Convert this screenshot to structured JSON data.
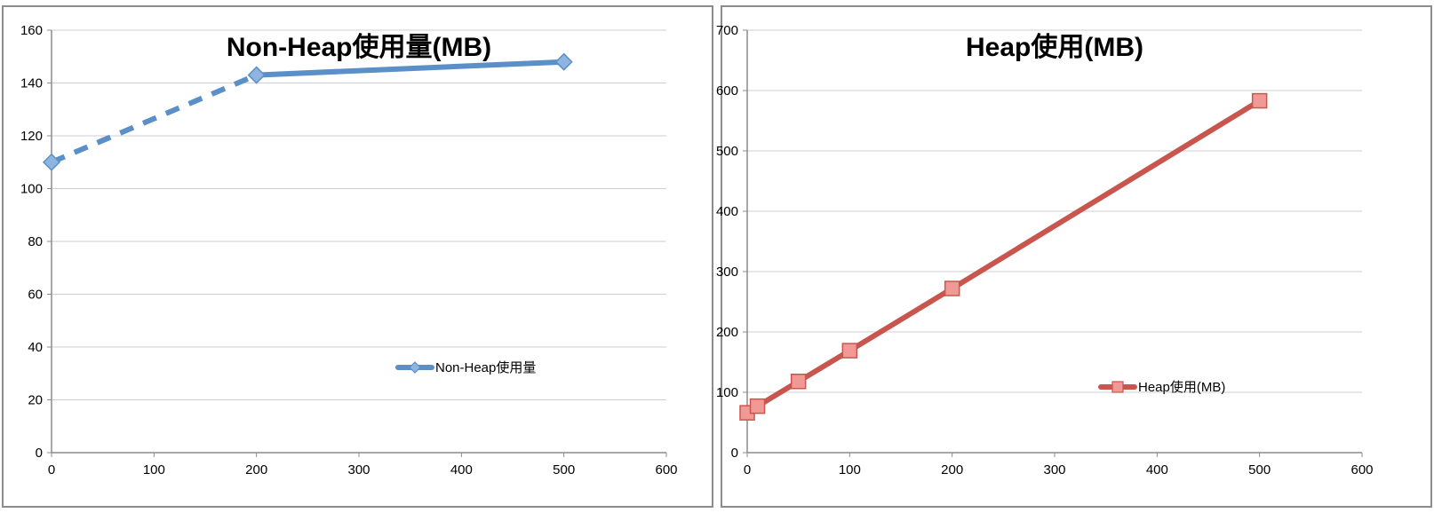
{
  "chart_data": [
    {
      "type": "line",
      "title": "Non-Heap使用量(MB)",
      "xlabel": "",
      "ylabel": "",
      "xlim": [
        0,
        600
      ],
      "ylim": [
        0,
        160
      ],
      "x_ticks": [
        0,
        100,
        200,
        300,
        400,
        500,
        600
      ],
      "y_ticks": [
        0,
        20,
        40,
        60,
        80,
        100,
        120,
        140,
        160
      ],
      "grid": "horizontal",
      "legend_position": "bottom-right",
      "series": [
        {
          "name": "Non-Heap使用量",
          "color": "#5b8fc7",
          "marker": "diamond",
          "x": [
            0,
            200,
            500
          ],
          "y": [
            110,
            143,
            148
          ],
          "segment_styles": [
            "dashed",
            "solid"
          ]
        }
      ]
    },
    {
      "type": "line",
      "title": "Heap使用(MB)",
      "xlabel": "",
      "ylabel": "",
      "xlim": [
        0,
        600
      ],
      "ylim": [
        0,
        700
      ],
      "x_ticks": [
        0,
        100,
        200,
        300,
        400,
        500,
        600
      ],
      "y_ticks": [
        0,
        100,
        200,
        300,
        400,
        500,
        600,
        700
      ],
      "grid": "horizontal",
      "legend_position": "bottom-right",
      "series": [
        {
          "name": "Heap使用(MB)",
          "color": "#c9564e",
          "marker": "square",
          "x": [
            0,
            10,
            50,
            100,
            200,
            500
          ],
          "y": [
            66,
            77,
            118,
            169,
            272,
            583
          ],
          "segment_styles": [
            "solid",
            "solid",
            "solid",
            "solid",
            "solid"
          ]
        }
      ]
    }
  ]
}
